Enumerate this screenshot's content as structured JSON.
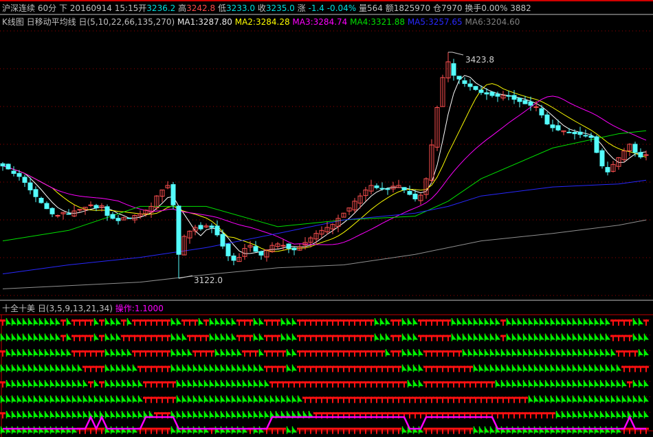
{
  "header": {
    "symbol": "沪深连续",
    "period": "60分",
    "direction": "下",
    "datetime": "20160914 15:15",
    "open_label": "开",
    "open": "3236.2",
    "high_label": "高",
    "high": "3242.8",
    "low_label": "低",
    "low": "3233.0",
    "close_label": "收",
    "close": "3235.0",
    "change_label": "涨",
    "change": "-1.4 -0.04%",
    "extra": "量564 额1825970 仓7970 换手0.00% 3882"
  },
  "ma_legend": {
    "title": "K线图 日移动平均线 日(5,10,22,66,135,270)",
    "ma1": "MA1:3287.80",
    "ma2": "MA2:3284.28",
    "ma3": "MA3:3284.74",
    "ma4": "MA4:3321.88",
    "ma5": "MA5:3257.65",
    "ma6": "MA6:3204.60"
  },
  "indicator": {
    "title": "十全十美 日(3,5,9,13,21,34)",
    "operation": "操作:1.1000",
    "periods": [
      3,
      5,
      9,
      13,
      21,
      34
    ]
  },
  "colors": {
    "up": "#ff5050",
    "down": "#54fcfc",
    "ma1": "#ffffff",
    "ma2": "#ffff00",
    "ma3": "#ff00ff",
    "ma4": "#00e000",
    "ma5": "#2828ff",
    "ma6": "#909090",
    "signal_red": "#ff1010",
    "signal_green": "#00f000",
    "operation": "#ff00ff",
    "grid": "#a00000"
  },
  "chart_data": {
    "type": "candlestick",
    "ylim": [
      3100,
      3440
    ],
    "grid": "dotted horizontal",
    "closes": [
      3272,
      3268,
      3262,
      3258,
      3250,
      3240,
      3231,
      3223,
      3215,
      3208,
      3206,
      3210,
      3208,
      3212,
      3214,
      3217,
      3220,
      3216,
      3219,
      3206,
      3202,
      3199,
      3203,
      3202,
      3206,
      3208,
      3213,
      3218,
      3232,
      3240,
      3246,
      3220,
      3154,
      3178,
      3185,
      3190,
      3188,
      3192,
      3190,
      3180,
      3165,
      3152,
      3146,
      3150,
      3162,
      3166,
      3158,
      3153,
      3160,
      3166,
      3168,
      3166,
      3162,
      3160,
      3164,
      3170,
      3176,
      3182,
      3186,
      3190,
      3194,
      3202,
      3209,
      3216,
      3225,
      3232,
      3240,
      3246,
      3243,
      3242,
      3241,
      3245,
      3246,
      3240,
      3234,
      3228,
      3233,
      3255,
      3300,
      3350,
      3390,
      3411,
      3393,
      3388,
      3382,
      3378,
      3374,
      3370,
      3368,
      3366,
      3365,
      3366,
      3365,
      3361,
      3358,
      3355,
      3353,
      3351,
      3340,
      3328,
      3323,
      3320,
      3319,
      3317,
      3315,
      3314,
      3312,
      3310,
      3290,
      3272,
      3264,
      3274,
      3283,
      3292,
      3301,
      3290,
      3284,
      3287
    ],
    "ma_short_periods": {
      "MA1": 5,
      "MA2": 10,
      "MA3": 22
    },
    "ma_long": {
      "MA4": [
        [
          0,
          3172
        ],
        [
          12,
          3186
        ],
        [
          25,
          3218
        ],
        [
          37,
          3218
        ],
        [
          50,
          3191
        ],
        [
          62,
          3200
        ],
        [
          75,
          3205
        ],
        [
          81,
          3225
        ],
        [
          87,
          3255
        ],
        [
          100,
          3296
        ],
        [
          112,
          3315
        ],
        [
          117,
          3319
        ]
      ],
      "MA5": [
        [
          0,
          3128
        ],
        [
          12,
          3140
        ],
        [
          25,
          3150
        ],
        [
          37,
          3163
        ],
        [
          50,
          3182
        ],
        [
          62,
          3200
        ],
        [
          75,
          3209
        ],
        [
          81,
          3218
        ],
        [
          87,
          3232
        ],
        [
          100,
          3244
        ],
        [
          112,
          3248
        ],
        [
          117,
          3253
        ]
      ],
      "MA6": [
        [
          0,
          3108
        ],
        [
          25,
          3117
        ],
        [
          37,
          3127
        ],
        [
          50,
          3136
        ],
        [
          62,
          3140
        ],
        [
          75,
          3154
        ],
        [
          87,
          3172
        ],
        [
          100,
          3182
        ],
        [
          112,
          3193
        ],
        [
          117,
          3200
        ]
      ]
    },
    "annotations": [
      {
        "bar": 81,
        "value": 3423.8,
        "label": "3423.8"
      },
      {
        "bar": 32,
        "value": 3122.0,
        "label": "3122.0"
      }
    ]
  }
}
